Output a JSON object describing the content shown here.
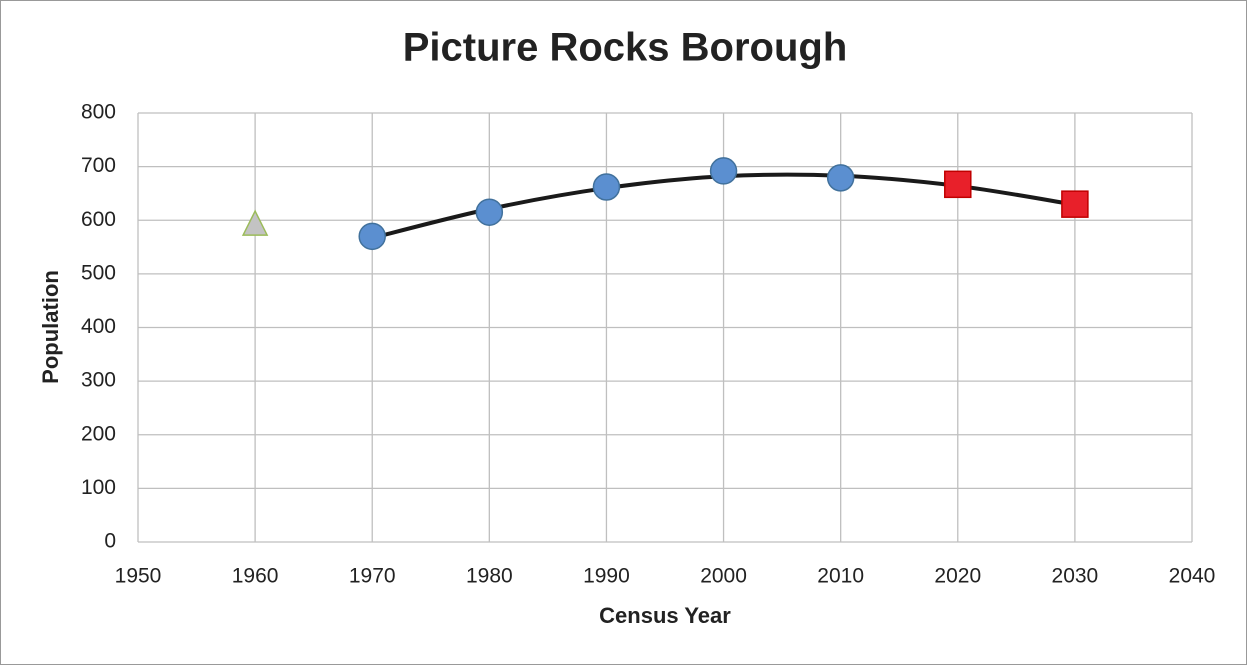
{
  "chart_data": {
    "type": "scatter",
    "title": "Picture Rocks Borough",
    "xlabel": "Census Year",
    "ylabel": "Population",
    "xlim": [
      1950,
      2040
    ],
    "xticks": [
      1950,
      1960,
      1970,
      1980,
      1990,
      2000,
      2010,
      2020,
      2030,
      2040
    ],
    "ylim": [
      0,
      800
    ],
    "yticks": [
      0,
      100,
      200,
      300,
      400,
      500,
      600,
      700,
      800
    ],
    "grid": true,
    "series": [
      {
        "marker": "triangle",
        "color": "#c3c3c3",
        "edge": "#9bbb59",
        "x": [
          1960
        ],
        "values": [
          591
        ]
      },
      {
        "marker": "circle",
        "color": "#5b8fd0",
        "edge": "#41719c",
        "x": [
          1970,
          1980,
          1990,
          2000,
          2010
        ],
        "values": [
          570,
          615,
          662,
          692,
          679
        ]
      },
      {
        "marker": "square",
        "color": "#e8202a",
        "edge": "#c00000",
        "x": [
          2020,
          2030
        ],
        "values": [
          667,
          630
        ]
      },
      {
        "marker": "trend",
        "color": "#1a1a1a",
        "x": [
          1970,
          1980,
          1990,
          2000,
          2010,
          2020,
          2030
        ],
        "values": [
          567,
          621,
          660,
          682,
          683,
          664,
          629
        ]
      }
    ]
  }
}
